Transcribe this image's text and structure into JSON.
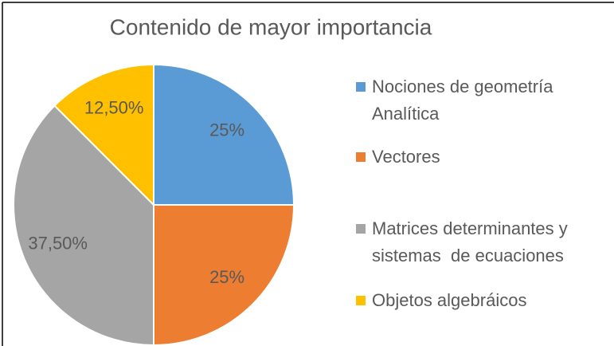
{
  "chart_data": {
    "type": "pie",
    "title": "Contenido de mayor importancia",
    "categories": [
      "Nociones de geometría Analítica",
      "Vectores",
      "Matrices determinantes y sistemas  de ecuaciones",
      "Objetos algebráicos"
    ],
    "values": [
      25,
      25,
      37.5,
      12.5
    ],
    "value_labels": [
      "25%",
      "25%",
      "37,50%",
      "12,50%"
    ],
    "colors": [
      "#5b9bd5",
      "#ed7d31",
      "#a5a5a5",
      "#ffc000"
    ],
    "legend": "right"
  }
}
